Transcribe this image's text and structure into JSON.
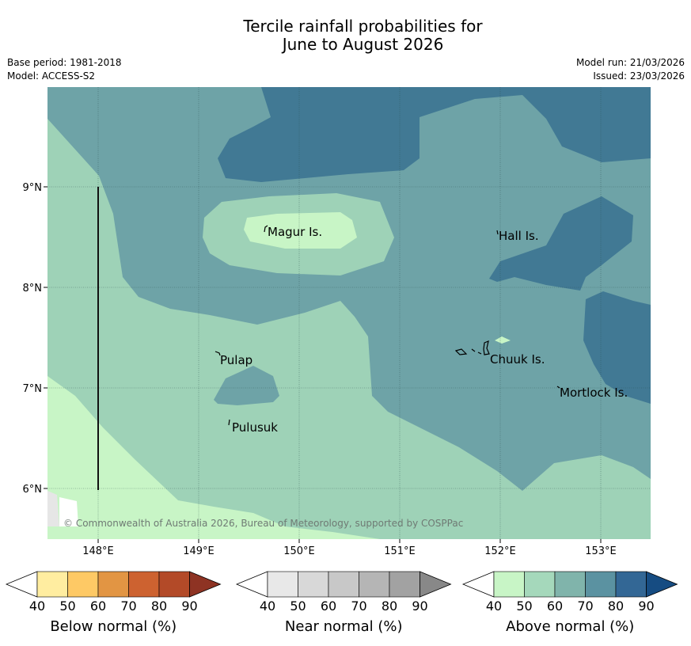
{
  "title_line1": "Tercile rainfall probabilities for",
  "title_line2": "June to August 2026",
  "meta": {
    "base_period": "Base period: 1981-2018",
    "model": "Model: ACCESS-S2",
    "model_run": "Model run: 21/03/2026",
    "issued": "Issued: 23/03/2026"
  },
  "copyright": "© Commonwealth of Australia 2026, Bureau of Meteorology, supported by COSPPac",
  "map": {
    "lat_labels": [
      "9°N",
      "8°N",
      "7°N",
      "6°N"
    ],
    "lon_labels": [
      "148°E",
      "149°E",
      "150°E",
      "151°E",
      "152°E",
      "153°E"
    ],
    "places": [
      "Magur Is.",
      "Hall Is.",
      "Pulap",
      "Chuuk Is.",
      "Mortlock Is.",
      "Pulusuk"
    ],
    "colors": {
      "above_50": "#c8f5c6",
      "above_60": "#9ed2b7",
      "above_70": "#6ea3a7",
      "above_80": "#417994"
    }
  },
  "colorbars": [
    {
      "label": "Below normal (%)",
      "ticks": [
        "40",
        "50",
        "60",
        "70",
        "80",
        "90"
      ],
      "colors": [
        "#ffeda0",
        "#fec965",
        "#e29543",
        "#cd6230",
        "#b34a28",
        "#8e3323"
      ]
    },
    {
      "label": "Near normal (%)",
      "ticks": [
        "40",
        "50",
        "60",
        "70",
        "80",
        "90"
      ],
      "colors": [
        "#e8e8e8",
        "#d8d8d8",
        "#c8c8c8",
        "#b5b5b5",
        "#a2a2a2",
        "#888888"
      ]
    },
    {
      "label": "Above normal (%)",
      "ticks": [
        "40",
        "50",
        "60",
        "70",
        "80",
        "90"
      ],
      "colors": [
        "#c8f5c6",
        "#a5d8bb",
        "#80b4ab",
        "#5b92a1",
        "#336795",
        "#164c82"
      ]
    }
  ]
}
